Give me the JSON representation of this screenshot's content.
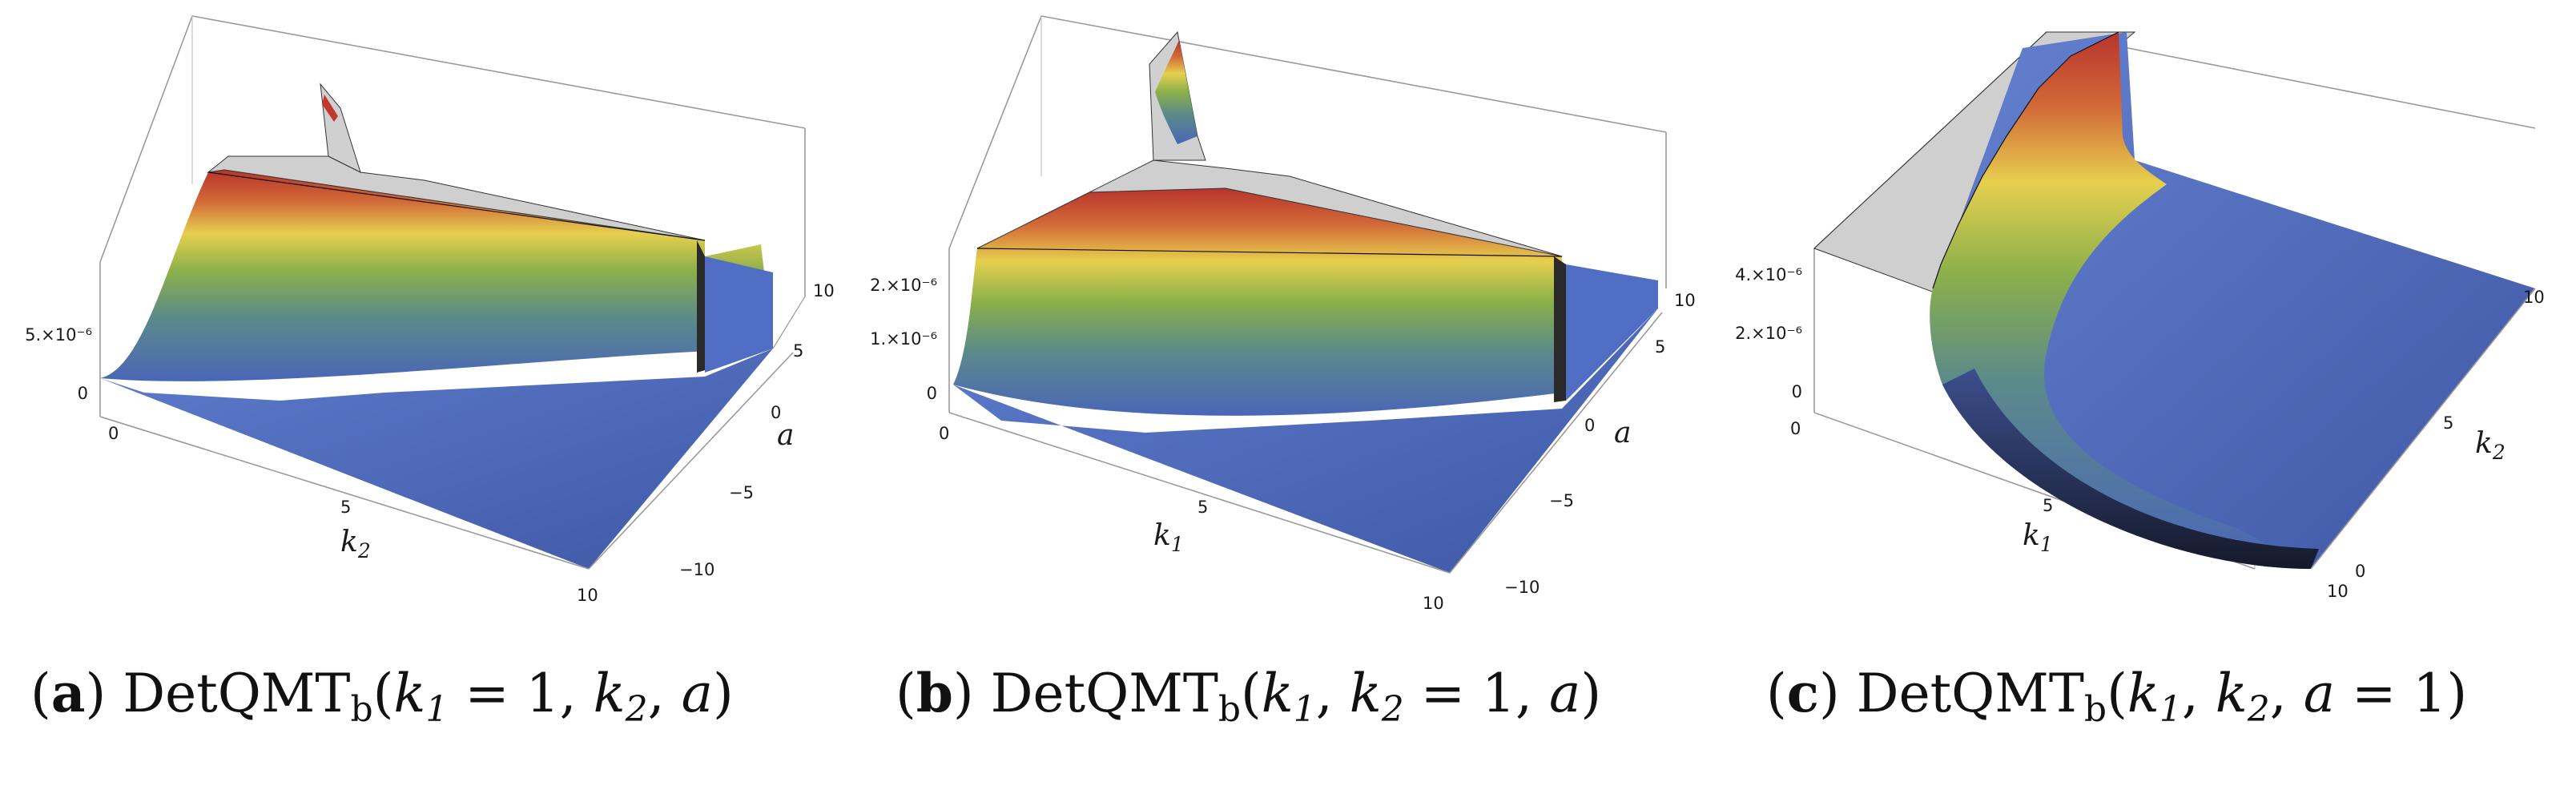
{
  "figure": {
    "captions": [
      {
        "tag": "a",
        "func": "DetQMT",
        "sub": "b",
        "args": [
          {
            "v": "k",
            "s": "1",
            "rest": " = 1"
          },
          {
            "v": "k",
            "s": "2",
            "rest": ""
          },
          {
            "v": "a",
            "s": "",
            "rest": ""
          }
        ]
      },
      {
        "tag": "b",
        "func": "DetQMT",
        "sub": "b",
        "args": [
          {
            "v": "k",
            "s": "1",
            "rest": ""
          },
          {
            "v": "k",
            "s": "2",
            "rest": " = 1"
          },
          {
            "v": "a",
            "s": "",
            "rest": ""
          }
        ]
      },
      {
        "tag": "c",
        "func": "DetQMT",
        "sub": "b",
        "args": [
          {
            "v": "k",
            "s": "1",
            "rest": ""
          },
          {
            "v": "k",
            "s": "2",
            "rest": ""
          },
          {
            "v": "a",
            "s": "",
            "rest": " = 1"
          }
        ]
      }
    ]
  },
  "chart_data": [
    {
      "type": "surface3d",
      "x_axis": {
        "label": "k",
        "label_sub": "2",
        "range": [
          0,
          10
        ],
        "ticks": [
          "0",
          "5",
          "10"
        ]
      },
      "y_axis": {
        "label": "a",
        "label_sub": "",
        "range": [
          -10,
          10
        ],
        "ticks": [
          "−10",
          "−5",
          "0",
          "5",
          "10"
        ]
      },
      "z_axis": {
        "ticks": [
          "0",
          "5.×10⁻⁶"
        ]
      },
      "colormap": [
        "#4a66b8",
        "#6a9a5a",
        "#e8d45a",
        "#c84030"
      ],
      "cap_color": "#c8c8c8"
    },
    {
      "type": "surface3d",
      "x_axis": {
        "label": "k",
        "label_sub": "1",
        "range": [
          0,
          10
        ],
        "ticks": [
          "0",
          "5",
          "10"
        ]
      },
      "y_axis": {
        "label": "a",
        "label_sub": "",
        "range": [
          -10,
          10
        ],
        "ticks": [
          "−10",
          "−5",
          "0",
          "5",
          "10"
        ]
      },
      "z_axis": {
        "ticks": [
          "0",
          "1.×10⁻⁶",
          "2.×10⁻⁶"
        ]
      },
      "colormap": [
        "#4a66b8",
        "#6a9a5a",
        "#e8d45a",
        "#c84030"
      ],
      "cap_color": "#c8c8c8"
    },
    {
      "type": "surface3d",
      "x_axis": {
        "label": "k",
        "label_sub": "1",
        "range": [
          0,
          10
        ],
        "ticks": [
          "0",
          "5",
          "10"
        ]
      },
      "y_axis": {
        "label": "k",
        "label_sub": "2",
        "range": [
          0,
          10
        ],
        "ticks": [
          "0",
          "5",
          "10"
        ]
      },
      "z_axis": {
        "ticks": [
          "0",
          "2.×10⁻⁶",
          "4.×10⁻⁶"
        ]
      },
      "colormap": [
        "#4a66b8",
        "#6a9a5a",
        "#e8d45a",
        "#c84030"
      ],
      "cap_color": "#c8c8c8"
    }
  ]
}
